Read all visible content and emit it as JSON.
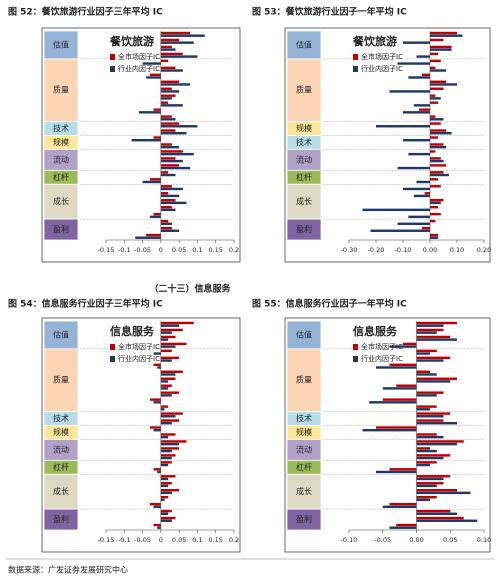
{
  "section_heading": "（二十三）信息服务",
  "source": "数据来源：广发证券发展研究中心",
  "figures": [
    {
      "caption": "图 52：餐饮旅游行业因子三年平均 IC",
      "chart": {
        "type": "bar",
        "orientation": "horizontal",
        "title": "餐饮旅游",
        "groups": [
          {
            "name": "估值",
            "color": "#95b3d7",
            "categories": [
              null,
              null,
              null,
              null
            ]
          },
          {
            "name": "质量",
            "color": "#fcd5b4",
            "categories": [
              null,
              null,
              null,
              null,
              null,
              null,
              null,
              null,
              null
            ]
          },
          {
            "name": "技术",
            "color": "#b7dee8",
            "categories": [
              null,
              null
            ]
          },
          {
            "name": "规模",
            "color": "#ffe699",
            "categories": [
              null,
              null
            ]
          },
          {
            "name": "流动",
            "color": "#b1a0c7",
            "categories": [
              null,
              null,
              null
            ]
          },
          {
            "name": "杠杆",
            "color": "#9bbb59",
            "categories": [
              null,
              null
            ]
          },
          {
            "name": "成长",
            "color": "#ddd9c4",
            "categories": [
              null,
              null,
              null,
              null,
              null
            ]
          },
          {
            "name": "盈利",
            "color": "#8064a2",
            "categories": [
              null,
              null,
              null
            ]
          }
        ],
        "series": [
          {
            "name": "全市场因子IC",
            "color": "#c00000",
            "values": [
              0.08,
              0.05,
              0.03,
              0.06,
              0.02,
              0.04,
              -0.03,
              0.05,
              0.03,
              0.04,
              0.02,
              -0.02,
              0.03,
              0.05,
              0.04,
              -0.02,
              0.03,
              0.06,
              0.04,
              0.05,
              0.02,
              -0.03,
              0.03,
              0.02,
              0.04,
              0.03,
              -0.02,
              0.02,
              0.03,
              -0.04
            ]
          },
          {
            "name": "行业内因子IC",
            "color": "#1f3864",
            "values": [
              0.12,
              0.09,
              0.04,
              0.1,
              -0.05,
              0.06,
              -0.04,
              0.08,
              0.05,
              0.03,
              0.06,
              -0.06,
              0.04,
              0.1,
              0.07,
              -0.08,
              0.05,
              0.09,
              0.06,
              0.08,
              0.04,
              -0.05,
              0.06,
              0.05,
              0.07,
              0.04,
              -0.03,
              0.03,
              0.05,
              -0.07
            ]
          }
        ],
        "xlim": [
          -0.15,
          0.2
        ],
        "xticks": [
          -0.15,
          -0.1,
          -0.05,
          0,
          0.05,
          0.1,
          0.15,
          0.2
        ]
      }
    },
    {
      "caption": "图 53：餐饮旅游行业因子一年平均 IC",
      "chart": {
        "type": "bar",
        "orientation": "horizontal",
        "title": "餐饮旅游",
        "groups": [
          {
            "name": "估值",
            "color": "#95b3d7",
            "categories": [
              null,
              null,
              null,
              null
            ]
          },
          {
            "name": "质量",
            "color": "#fcd5b4",
            "categories": [
              null,
              null,
              null,
              null,
              null,
              null,
              null,
              null,
              null
            ]
          },
          {
            "name": "规模",
            "color": "#ffe699",
            "categories": [
              null,
              null
            ]
          },
          {
            "name": "技术",
            "color": "#b7dee8",
            "categories": [
              null,
              null
            ]
          },
          {
            "name": "流动",
            "color": "#b1a0c7",
            "categories": [
              null,
              null,
              null
            ]
          },
          {
            "name": "杠杆",
            "color": "#9bbb59",
            "categories": [
              null,
              null
            ]
          },
          {
            "name": "成长",
            "color": "#ddd9c4",
            "categories": [
              null,
              null,
              null,
              null,
              null
            ]
          },
          {
            "name": "盈利",
            "color": "#8064a2",
            "categories": [
              null,
              null,
              null
            ]
          }
        ],
        "series": [
          {
            "name": "全市场因子IC",
            "color": "#c00000",
            "values": [
              0.1,
              0.05,
              0.08,
              0.03,
              0.04,
              0.02,
              -0.03,
              0.06,
              0.05,
              0.02,
              0.03,
              -0.04,
              0.02,
              0.04,
              0.06,
              0.03,
              0.05,
              0.02,
              0.04,
              0.06,
              0.05,
              0.03,
              0.04,
              -0.02,
              0.05,
              0.03,
              0.04,
              0.02,
              -0.03,
              0.03
            ]
          },
          {
            "name": "行业内因子IC",
            "color": "#1f3864",
            "values": [
              0.12,
              -0.1,
              0.08,
              -0.05,
              -0.12,
              0.06,
              -0.08,
              0.1,
              -0.15,
              0.04,
              -0.06,
              -0.1,
              0.05,
              -0.2,
              0.08,
              -0.1,
              0.06,
              -0.08,
              0.05,
              -0.12,
              0.07,
              -0.05,
              -0.1,
              -0.06,
              0.04,
              -0.25,
              -0.08,
              -0.12,
              -0.22,
              0.03
            ]
          }
        ],
        "xlim": [
          -0.3,
          0.2
        ],
        "xticks": [
          {
            "value": -0.3,
            "label": "-0.30"
          },
          {
            "value": -0.2,
            "label": "-0.20"
          },
          {
            "value": -0.1,
            "label": "-0.10"
          },
          {
            "value": 0,
            "label": "0.00"
          },
          {
            "value": 0.1,
            "label": "0.10"
          },
          {
            "value": 0.2,
            "label": "0.20"
          }
        ]
      }
    },
    {
      "caption": "图 54：信息服务行业因子三年平均 IC",
      "chart": {
        "type": "bar",
        "orientation": "horizontal",
        "title": "信息服务",
        "groups": [
          {
            "name": "估值",
            "color": "#95b3d7",
            "categories": [
              null,
              null,
              null,
              null
            ]
          },
          {
            "name": "质量",
            "color": "#fcd5b4",
            "categories": [
              null,
              null,
              null,
              null,
              null,
              null,
              null,
              null,
              null
            ]
          },
          {
            "name": "技术",
            "color": "#b7dee8",
            "categories": [
              null,
              null
            ]
          },
          {
            "name": "规模",
            "color": "#ffe699",
            "categories": [
              null,
              null
            ]
          },
          {
            "name": "流动",
            "color": "#b1a0c7",
            "categories": [
              null,
              null,
              null
            ]
          },
          {
            "name": "杠杆",
            "color": "#9bbb59",
            "categories": [
              null,
              null
            ]
          },
          {
            "name": "成长",
            "color": "#ddd9c4",
            "categories": [
              null,
              null,
              null,
              null,
              null
            ]
          },
          {
            "name": "盈利",
            "color": "#8064a2",
            "categories": [
              null,
              null,
              null
            ]
          }
        ],
        "series": [
          {
            "name": "全市场因子IC",
            "color": "#c00000",
            "values": [
              0.09,
              0.06,
              0.04,
              0.07,
              0.03,
              0.05,
              -0.02,
              0.06,
              0.04,
              0.03,
              0.05,
              -0.03,
              0.02,
              0.06,
              0.05,
              -0.03,
              0.04,
              0.07,
              0.05,
              0.04,
              0.03,
              -0.02,
              0.04,
              0.03,
              0.05,
              0.02,
              -0.03,
              0.03,
              0.04,
              -0.02
            ]
          },
          {
            "name": "行业内因子IC",
            "color": "#1f3864",
            "values": [
              0.05,
              0.03,
              0.02,
              0.04,
              -0.02,
              0.03,
              -0.01,
              0.04,
              0.02,
              0.02,
              0.03,
              -0.02,
              0.01,
              0.04,
              0.03,
              -0.02,
              0.02,
              0.05,
              0.03,
              0.03,
              0.02,
              -0.01,
              0.02,
              0.02,
              0.03,
              0.01,
              -0.02,
              0.02,
              0.03,
              -0.01
            ]
          }
        ],
        "xlim": [
          -0.15,
          0.2
        ],
        "xticks": [
          -0.15,
          -0.1,
          -0.05,
          0,
          0.05,
          0.1,
          0.15,
          0.2
        ]
      }
    },
    {
      "caption": "图 55：信息服务行业因子一年平均 IC",
      "chart": {
        "type": "bar",
        "orientation": "horizontal",
        "title": "信息服务",
        "groups": [
          {
            "name": "估值",
            "color": "#95b3d7",
            "categories": [
              null,
              null,
              null,
              null
            ]
          },
          {
            "name": "质量",
            "color": "#fcd5b4",
            "categories": [
              null,
              null,
              null,
              null,
              null,
              null,
              null,
              null,
              null
            ]
          },
          {
            "name": "技术",
            "color": "#b7dee8",
            "categories": [
              null,
              null
            ]
          },
          {
            "name": "规模",
            "color": "#ffe699",
            "categories": [
              null,
              null
            ]
          },
          {
            "name": "流动",
            "color": "#b1a0c7",
            "categories": [
              null,
              null,
              null
            ]
          },
          {
            "name": "杠杆",
            "color": "#9bbb59",
            "categories": [
              null,
              null
            ]
          },
          {
            "name": "成长",
            "color": "#ddd9c4",
            "categories": [
              null,
              null,
              null,
              null,
              null
            ]
          },
          {
            "name": "盈利",
            "color": "#8064a2",
            "categories": [
              null,
              null,
              null
            ]
          }
        ],
        "series": [
          {
            "name": "全市场因子IC",
            "color": "#c00000",
            "values": [
              0.06,
              0.04,
              0.05,
              -0.02,
              0.03,
              0.05,
              -0.04,
              0.02,
              0.06,
              -0.03,
              0.04,
              -0.05,
              0.03,
              0.05,
              0.04,
              -0.06,
              0.03,
              0.07,
              0.02,
              0.05,
              0.03,
              -0.04,
              0.05,
              0.04,
              0.06,
              0.03,
              -0.04,
              0.05,
              0.07,
              -0.03
            ]
          },
          {
            "name": "行业内因子IC",
            "color": "#1f3864",
            "values": [
              0.04,
              0.03,
              0.06,
              -0.04,
              0.02,
              0.04,
              -0.06,
              0.03,
              0.05,
              -0.05,
              0.03,
              -0.07,
              0.02,
              0.04,
              0.06,
              -0.08,
              0.04,
              0.06,
              0.03,
              0.04,
              0.02,
              -0.06,
              0.04,
              0.03,
              0.08,
              0.02,
              -0.05,
              0.06,
              0.09,
              -0.04
            ]
          }
        ],
        "xlim": [
          -0.1,
          0.1
        ],
        "xticks": [
          {
            "value": -0.1,
            "label": "-0.10"
          },
          {
            "value": -0.05,
            "label": "-0.05"
          },
          {
            "value": 0,
            "label": "0.00"
          },
          {
            "value": 0.05,
            "label": "0.05"
          },
          {
            "value": 0.1,
            "label": "0.10"
          }
        ]
      }
    }
  ]
}
